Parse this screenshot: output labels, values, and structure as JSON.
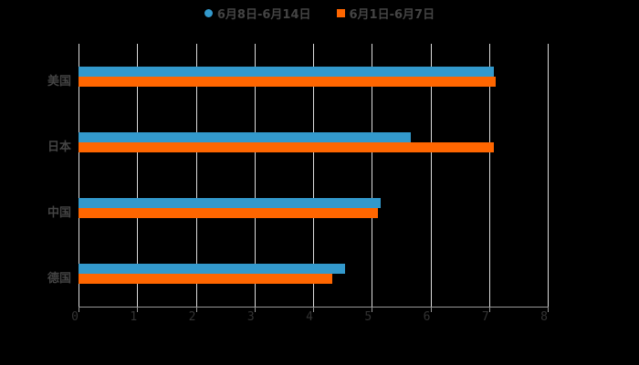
{
  "chart_data": {
    "type": "bar",
    "orientation": "horizontal",
    "categories": [
      "美国",
      "日本",
      "中国",
      "德国"
    ],
    "series": [
      {
        "name": "6月8日-6月14日",
        "color": "#3399CC",
        "values": [
          7.08,
          5.67,
          5.15,
          4.54
        ]
      },
      {
        "name": "6月1日-6月7日",
        "color": "#FF6600",
        "values": [
          7.11,
          7.08,
          5.11,
          4.33
        ]
      }
    ],
    "title": "",
    "xlabel": "",
    "ylabel": "",
    "xlim": [
      0,
      8
    ],
    "xticks": [
      "0",
      "1",
      "2",
      "3",
      "4",
      "5",
      "6",
      "7",
      "8"
    ],
    "grid": true,
    "legend_position": "top"
  },
  "legend": {
    "items": [
      {
        "label": "6月8日-6月14日",
        "color": "#3399CC",
        "marker": "circle"
      },
      {
        "label": "6月1日-6月7日",
        "color": "#FF6600",
        "marker": "square"
      }
    ]
  }
}
